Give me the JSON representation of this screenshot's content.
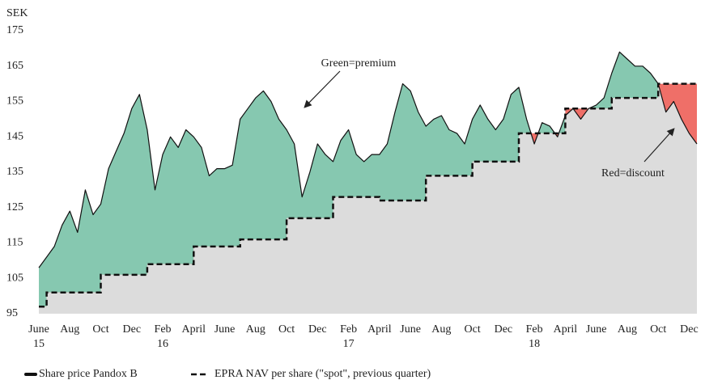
{
  "chart_data": {
    "type": "line",
    "y_label": "SEK",
    "categories": [
      "June 15",
      null,
      null,
      null,
      "Aug",
      null,
      null,
      null,
      "Oct",
      null,
      null,
      null,
      "Dec",
      null,
      null,
      null,
      "Feb 16",
      null,
      null,
      null,
      "April",
      null,
      null,
      null,
      "June",
      null,
      null,
      null,
      "Aug",
      null,
      null,
      null,
      "Oct",
      null,
      null,
      null,
      "Dec",
      null,
      null,
      null,
      "Feb 17",
      null,
      null,
      null,
      "April",
      null,
      null,
      null,
      "June",
      null,
      null,
      null,
      "Aug",
      null,
      null,
      null,
      "Oct",
      null,
      null,
      null,
      "Dec",
      null,
      null,
      null,
      "Feb 18",
      null,
      null,
      null,
      "April",
      null,
      null,
      null,
      "June",
      null,
      null,
      null,
      "Aug",
      null,
      null,
      null,
      "Oct",
      null,
      null,
      null,
      "Dec",
      null
    ],
    "series": [
      {
        "name": "Share price Pandox B",
        "color": "#111111",
        "style": "solid",
        "values": [
          108,
          111,
          114,
          120,
          124,
          118,
          130,
          123,
          126,
          136,
          141,
          146,
          153,
          157,
          147,
          130,
          140,
          145,
          142,
          147,
          145,
          142,
          134,
          136,
          136,
          137,
          150,
          153,
          156,
          158,
          155,
          150,
          147,
          143,
          128,
          135,
          143,
          140,
          138,
          144,
          147,
          140,
          138,
          140,
          140,
          143,
          152,
          160,
          158,
          152,
          148,
          150,
          151,
          147,
          146,
          143,
          150,
          154,
          150,
          147,
          150,
          157,
          159,
          150,
          143,
          149,
          148,
          145,
          151,
          153,
          150,
          153,
          154,
          156,
          163,
          169,
          167,
          165,
          165,
          163,
          160,
          152,
          155,
          150,
          146,
          143
        ]
      },
      {
        "name": "EPRA NAV per share (\"spot\", previous quarter)",
        "color": "#111111",
        "style": "dashed",
        "step": true,
        "values": [
          97,
          101,
          101,
          101,
          101,
          101,
          101,
          101,
          106,
          106,
          106,
          106,
          106,
          106,
          109,
          109,
          109,
          109,
          109,
          109,
          114,
          114,
          114,
          114,
          114,
          114,
          116,
          116,
          116,
          116,
          116,
          116,
          122,
          122,
          122,
          122,
          122,
          122,
          128,
          128,
          128,
          128,
          128,
          128,
          127,
          127,
          127,
          127,
          127,
          127,
          134,
          134,
          134,
          134,
          134,
          134,
          138,
          138,
          138,
          138,
          138,
          138,
          146,
          146,
          146,
          146,
          146,
          146,
          153,
          153,
          153,
          153,
          153,
          153,
          156,
          156,
          156,
          156,
          156,
          156,
          160,
          160,
          160,
          160,
          160,
          160
        ]
      }
    ],
    "premium_color": "#86c8b0",
    "discount_color": "#ef6f68",
    "base_color": "#dcdcdc",
    "ylim": [
      95,
      175
    ],
    "yticks": [
      95,
      105,
      115,
      125,
      135,
      145,
      155,
      165,
      175
    ],
    "annotations": [
      {
        "text": "Green=premium"
      },
      {
        "text": "Red=discount"
      }
    ],
    "legend": "bottom-left"
  }
}
